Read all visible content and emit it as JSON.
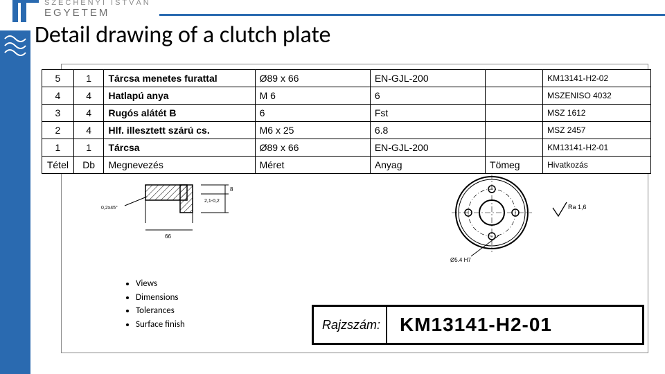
{
  "header": {
    "uni_line1": "SZÉCHENYI ISTVÁN",
    "uni_line2": "EGYETEM",
    "brand_color": "#2a6ab0"
  },
  "title": "Detail drawing of a clutch plate",
  "bom": {
    "headers": {
      "idx": "Tétel",
      "qty": "Db",
      "name": "Megnevezés",
      "size": "Méret",
      "mat": "Anyag",
      "mass": "Tömeg",
      "ref": "Hivatkozás"
    },
    "rows": [
      {
        "idx": "5",
        "qty": "1",
        "name": "Tárcsa menetes furattal",
        "size": "Ø89 x 66",
        "mat": "EN-GJL-200",
        "mass": "",
        "ref": "KM13141-H2-02"
      },
      {
        "idx": "4",
        "qty": "4",
        "name": "Hatlapú anya",
        "size": "M 6",
        "mat": "6",
        "mass": "",
        "ref": "MSZENISO 4032"
      },
      {
        "idx": "3",
        "qty": "4",
        "name": "Rugós alátét B",
        "size": "6",
        "mat": "Fst",
        "mass": "",
        "ref": "MSZ 1612"
      },
      {
        "idx": "2",
        "qty": "4",
        "name": "Hlf. illesztett szárú cs.",
        "size": "M6 x 25",
        "mat": "6.8",
        "mass": "",
        "ref": "MSZ 2457"
      },
      {
        "idx": "1",
        "qty": "1",
        "name": "Tárcsa",
        "size": "Ø89 x 66",
        "mat": "EN-GJL-200",
        "mass": "",
        "ref": "KM13141-H2-01"
      }
    ]
  },
  "bullet_items": [
    "Views",
    "Dimensions",
    "Tolerances",
    "Surface finish"
  ],
  "drawing_number": {
    "label": "Rajzszám:",
    "value": "KM13141-H2-01"
  },
  "section_labels": {
    "tol1": "0,2x45°",
    "tol2": "2,1-0,2",
    "dim_small": "8",
    "dim_w": "66"
  },
  "front_labels": {
    "hole": "Ø5.4 H7",
    "ra": "Ra 1,6"
  },
  "colors": {
    "line": "#000000",
    "hatch": "#000000",
    "frame": "#888888"
  }
}
